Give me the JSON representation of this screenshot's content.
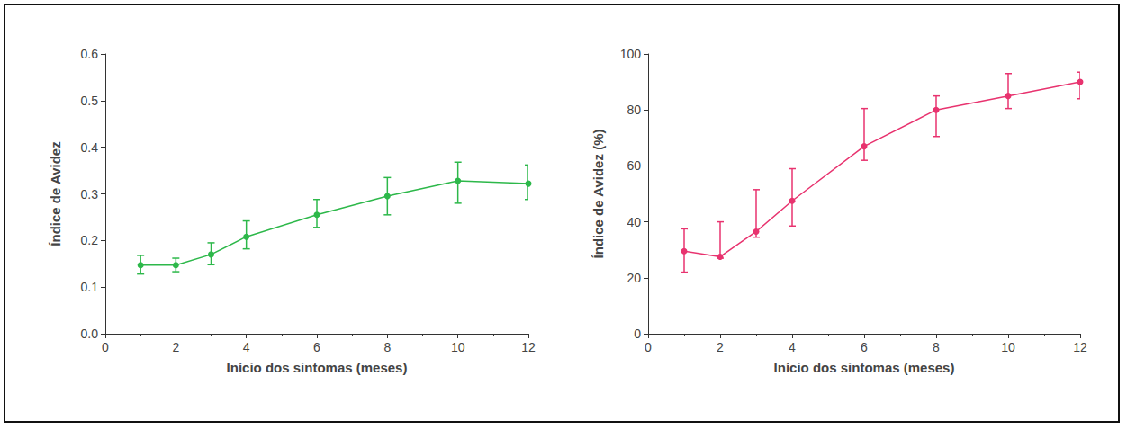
{
  "chart_data": [
    {
      "type": "line",
      "x_label": "Início dos sintomas (meses)",
      "y_label": "Índice de Avidez",
      "x": [
        1,
        2,
        3,
        4,
        6,
        8,
        10,
        12
      ],
      "values": [
        0.147,
        0.147,
        0.17,
        0.208,
        0.255,
        0.295,
        0.328,
        0.322
      ],
      "error_low": [
        0.128,
        0.133,
        0.148,
        0.182,
        0.228,
        0.255,
        0.28,
        0.288
      ],
      "error_high": [
        0.168,
        0.162,
        0.195,
        0.242,
        0.288,
        0.335,
        0.368,
        0.362
      ],
      "color": "#2db84a",
      "marker": "circle",
      "xlim": [
        0,
        12
      ],
      "xticks": [
        0,
        2,
        4,
        6,
        8,
        10,
        12
      ],
      "ylim": [
        0,
        0.6
      ],
      "yticks": [
        {
          "value": 0,
          "label": "0.0"
        },
        0.1,
        0.2,
        0.3,
        0.4,
        0.5,
        0.6
      ],
      "grid": false
    },
    {
      "type": "line",
      "x_label": "Início dos sintomas (meses)",
      "y_label": "Índice de Avidez (%)",
      "x": [
        1,
        2,
        3,
        4,
        6,
        8,
        10,
        12
      ],
      "values": [
        29.5,
        27.5,
        36.5,
        47.5,
        67,
        80,
        85,
        90
      ],
      "error_low": [
        22,
        27,
        34.5,
        38.5,
        62,
        70.5,
        80.5,
        84
      ],
      "error_high": [
        37.5,
        40,
        51.5,
        59,
        80.5,
        85,
        93,
        93.5
      ],
      "color": "#e8336f",
      "marker": "circle",
      "xlim": [
        0,
        12
      ],
      "xticks": [
        0,
        2,
        4,
        6,
        8,
        10,
        12
      ],
      "ylim": [
        0,
        100
      ],
      "yticks": [
        0,
        20,
        40,
        60,
        80,
        100
      ],
      "grid": false
    }
  ]
}
